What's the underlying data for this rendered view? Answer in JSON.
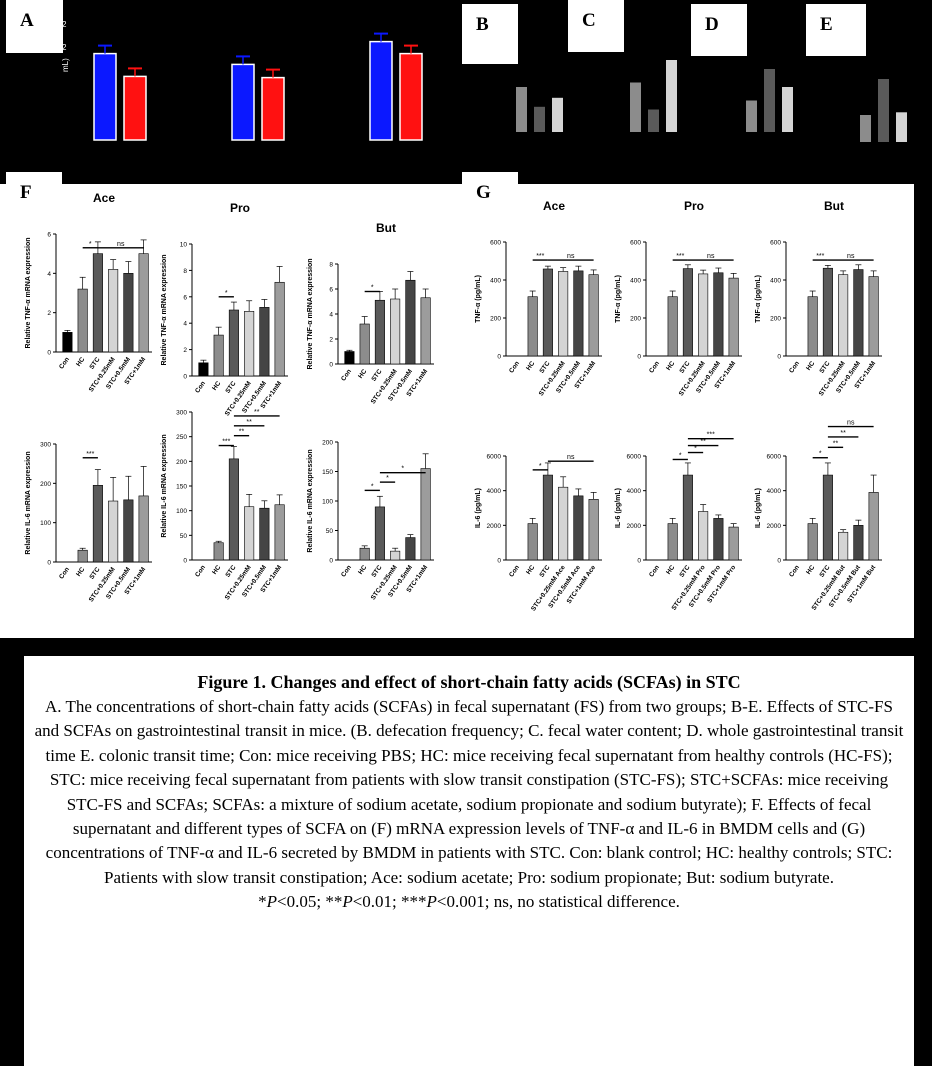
{
  "panels": {
    "A": "A",
    "B": "B",
    "C": "C",
    "D": "D",
    "E": "E",
    "F": "F",
    "G": "G"
  },
  "panelA_fragments": {
    "tick": "2",
    "tick2": "2",
    "unit": "mL)"
  },
  "panelA_bars": [
    {
      "group": 1,
      "values": [
        0.72,
        0.53
      ],
      "colors": [
        "#0b18ff",
        "#ff1111"
      ]
    },
    {
      "group": 2,
      "values": [
        0.63,
        0.52
      ],
      "colors": [
        "#0b18ff",
        "#ff1111"
      ]
    },
    {
      "group": 3,
      "values": [
        0.82,
        0.72
      ],
      "colors": [
        "#0b18ff",
        "#ff1111"
      ]
    }
  ],
  "small_panels": {
    "B": [
      0.5,
      0.28,
      0.38
    ],
    "C": [
      0.55,
      0.25,
      0.8
    ],
    "D": [
      0.35,
      0.7,
      0.5
    ],
    "E": [
      0.3,
      0.7,
      0.33
    ]
  },
  "chart_data": [
    {
      "id": "F-Ace-TNF",
      "type": "bar",
      "title": "Ace",
      "ylabel": "Relative TNF-α mRNA expression",
      "yticks": [
        "0",
        "2",
        "4",
        "6"
      ],
      "ylim": [
        0,
        6
      ],
      "categories": [
        "Con",
        "HC",
        "STC",
        "STC+0.25mM",
        "STC+0.5mM",
        "STC+1mM"
      ],
      "values": [
        1.0,
        3.2,
        5.0,
        4.2,
        4.0,
        5.0
      ],
      "errors": [
        0.1,
        0.6,
        0.6,
        0.5,
        0.6,
        0.7
      ],
      "sig": [
        {
          "label": "*",
          "from": 1,
          "to": 2,
          "y": 5.3
        },
        {
          "label": "ns",
          "from": 2,
          "to": 5,
          "y": 5.3
        }
      ]
    },
    {
      "id": "F-Pro-TNF",
      "type": "bar",
      "title": "Pro",
      "ylabel": "Relative TNF-α mRNA expression",
      "yticks": [
        "0",
        "2",
        "4",
        "6",
        "8",
        "10"
      ],
      "ylim": [
        0,
        10
      ],
      "categories": [
        "Con",
        "HC",
        "STC",
        "STC+0.25mM",
        "STC+0.5mM",
        "STC+1mM"
      ],
      "values": [
        1.0,
        3.1,
        5.0,
        4.9,
        5.2,
        7.1
      ],
      "errors": [
        0.2,
        0.6,
        0.6,
        0.8,
        0.6,
        1.2
      ],
      "sig": [
        {
          "label": "*",
          "from": 1,
          "to": 2,
          "y": 6.0
        }
      ]
    },
    {
      "id": "F-But-TNF",
      "type": "bar",
      "title": "But",
      "ylabel": "Relative TNF-α mRNA expression",
      "yticks": [
        "0",
        "2",
        "4",
        "6",
        "8"
      ],
      "ylim": [
        0,
        8
      ],
      "categories": [
        "Con",
        "HC",
        "STC",
        "STC+0.25mM",
        "STC+0.5mM",
        "STC+1mM"
      ],
      "values": [
        1.0,
        3.2,
        5.1,
        5.2,
        6.7,
        5.3
      ],
      "errors": [
        0.1,
        0.6,
        0.7,
        0.8,
        0.7,
        0.7
      ],
      "sig": [
        {
          "label": "*",
          "from": 1,
          "to": 2,
          "y": 5.8
        }
      ]
    },
    {
      "id": "F-Ace-IL6",
      "type": "bar",
      "title": "",
      "ylabel": "Relative IL-6 mRNA expression",
      "yticks": [
        "0",
        "100",
        "200",
        "300"
      ],
      "ylim": [
        0,
        300
      ],
      "categories": [
        "Con",
        "HC",
        "STC",
        "STC+0.25mM",
        "STC+0.5mM",
        "STC+1mM"
      ],
      "values": [
        0,
        30,
        195,
        155,
        158,
        168
      ],
      "errors": [
        0,
        5,
        40,
        60,
        60,
        75
      ],
      "sig": [
        {
          "label": "***",
          "from": 1,
          "to": 2,
          "y": 265
        }
      ]
    },
    {
      "id": "F-Pro-IL6",
      "type": "bar",
      "title": "",
      "ylabel": "Relative IL-6 mRNA expression",
      "yticks": [
        "0",
        "50",
        "100",
        "150",
        "200",
        "250",
        "300"
      ],
      "ylim": [
        0,
        300
      ],
      "categories": [
        "Con",
        "HC",
        "STC",
        "STC+0.25mM",
        "STC+0.5mM",
        "STC+1mM"
      ],
      "values": [
        0,
        35,
        205,
        108,
        105,
        112
      ],
      "errors": [
        0,
        3,
        25,
        25,
        15,
        20
      ],
      "sig": [
        {
          "label": "***",
          "from": 1,
          "to": 2,
          "y": 232
        },
        {
          "label": "**",
          "from": 2,
          "to": 3,
          "y": 252
        },
        {
          "label": "**",
          "from": 2,
          "to": 4,
          "y": 272
        },
        {
          "label": "**",
          "from": 2,
          "to": 5,
          "y": 292
        }
      ]
    },
    {
      "id": "F-But-IL6",
      "type": "bar",
      "title": "",
      "ylabel": "Relative IL-6 mRNA expression",
      "yticks": [
        "0",
        "50",
        "100",
        "150",
        "200"
      ],
      "ylim": [
        0,
        200
      ],
      "categories": [
        "Con",
        "HC",
        "STC",
        "STC+0.25mM",
        "STC+0.5mM",
        "STC+1mM"
      ],
      "values": [
        0,
        20,
        90,
        15,
        38,
        155
      ],
      "errors": [
        0,
        4,
        18,
        5,
        5,
        25
      ],
      "sig": [
        {
          "label": "*",
          "from": 1,
          "to": 2,
          "y": 118
        },
        {
          "label": "*",
          "from": 2,
          "to": 3,
          "y": 132
        },
        {
          "label": "*",
          "from": 2,
          "to": 5,
          "y": 148
        }
      ]
    },
    {
      "id": "G-Ace-TNF",
      "type": "bar",
      "title": "Ace",
      "ylabel": "TNF-α (pg/mL)",
      "yticks": [
        "0",
        "200",
        "400",
        "600"
      ],
      "ylim": [
        0,
        600
      ],
      "categories": [
        "Con",
        "HC",
        "STC",
        "STC+0.25mM",
        "STC+0.5mM",
        "STC+1mM"
      ],
      "values": [
        0,
        312,
        458,
        445,
        448,
        428
      ],
      "errors": [
        0,
        30,
        15,
        20,
        25,
        25
      ],
      "sig": [
        {
          "label": "***",
          "from": 1,
          "to": 2,
          "y": 505
        },
        {
          "label": "ns",
          "from": 2,
          "to": 5,
          "y": 505
        }
      ]
    },
    {
      "id": "G-Pro-TNF",
      "type": "bar",
      "title": "Pro",
      "ylabel": "TNF-α (pg/mL)",
      "yticks": [
        "0",
        "200",
        "400",
        "600"
      ],
      "ylim": [
        0,
        600
      ],
      "categories": [
        "Con",
        "HC",
        "STC",
        "STC+0.25mM",
        "STC+0.5mM",
        "STC+1mM"
      ],
      "values": [
        0,
        312,
        460,
        432,
        438,
        410
      ],
      "errors": [
        0,
        30,
        20,
        20,
        25,
        25
      ],
      "sig": [
        {
          "label": "***",
          "from": 1,
          "to": 2,
          "y": 505
        },
        {
          "label": "ns",
          "from": 2,
          "to": 5,
          "y": 505
        }
      ]
    },
    {
      "id": "G-But-TNF",
      "type": "bar",
      "title": "But",
      "ylabel": "TNF-α (pg/mL)",
      "yticks": [
        "0",
        "200",
        "400",
        "600"
      ],
      "ylim": [
        0,
        600
      ],
      "categories": [
        "Con",
        "HC",
        "STC",
        "STC+0.25mM",
        "STC+0.5mM",
        "STC+1mM"
      ],
      "values": [
        0,
        312,
        462,
        428,
        455,
        418
      ],
      "errors": [
        0,
        30,
        15,
        20,
        25,
        30
      ],
      "sig": [
        {
          "label": "***",
          "from": 1,
          "to": 2,
          "y": 505
        },
        {
          "label": "ns",
          "from": 2,
          "to": 5,
          "y": 505
        }
      ]
    },
    {
      "id": "G-Ace-IL6",
      "type": "bar",
      "title": "",
      "ylabel": "IL-6 (pg/mL)",
      "yticks": [
        "0",
        "2000",
        "4000",
        "6000"
      ],
      "ylim": [
        0,
        6000
      ],
      "categories": [
        "Con",
        "HC",
        "STC",
        "STC+0.25mM Ace",
        "STC+0.5mM Ace",
        "STC+1mM Ace"
      ],
      "values": [
        0,
        2100,
        4900,
        4200,
        3700,
        3500
      ],
      "errors": [
        0,
        300,
        700,
        600,
        400,
        400
      ],
      "sig": [
        {
          "label": "*",
          "from": 1,
          "to": 2,
          "y": 5200
        },
        {
          "label": "ns",
          "from": 2,
          "to": 5,
          "y": 5700
        }
      ]
    },
    {
      "id": "G-Pro-IL6",
      "type": "bar",
      "title": "",
      "ylabel": "IL-6 (pg/mL)",
      "yticks": [
        "0",
        "2000",
        "4000",
        "6000"
      ],
      "ylim": [
        0,
        6000
      ],
      "categories": [
        "Con",
        "HC",
        "STC",
        "STC+0.25mM Pro",
        "STC+0.5mM Pro",
        "STC+1mM Pro"
      ],
      "values": [
        0,
        2100,
        4900,
        2800,
        2400,
        1900
      ],
      "errors": [
        0,
        300,
        700,
        400,
        200,
        200
      ],
      "sig": [
        {
          "label": "*",
          "from": 1,
          "to": 2,
          "y": 5800
        },
        {
          "label": "*",
          "from": 2,
          "to": 3,
          "y": 6200
        },
        {
          "label": "**",
          "from": 2,
          "to": 4,
          "y": 6600
        },
        {
          "label": "***",
          "from": 2,
          "to": 5,
          "y": 7000
        }
      ]
    },
    {
      "id": "G-But-IL6",
      "type": "bar",
      "title": "",
      "ylabel": "IL-6 (pg/mL)",
      "yticks": [
        "0",
        "2000",
        "4000",
        "6000"
      ],
      "ylim": [
        0,
        6000
      ],
      "categories": [
        "Con",
        "HC",
        "STC",
        "STC+0.25mM But",
        "STC+0.5mM But",
        "STC+1mM But"
      ],
      "values": [
        0,
        2100,
        4900,
        1600,
        2000,
        3900
      ],
      "errors": [
        0,
        300,
        700,
        150,
        300,
        1000
      ],
      "sig": [
        {
          "label": "*",
          "from": 1,
          "to": 2,
          "y": 5900
        },
        {
          "label": "**",
          "from": 2,
          "to": 3,
          "y": 6500
        },
        {
          "label": "**",
          "from": 2,
          "to": 4,
          "y": 7100
        },
        {
          "label": "ns",
          "from": 2,
          "to": 5,
          "y": 7700
        }
      ]
    }
  ],
  "bar_colors": [
    "#000000",
    "#8c8c8c",
    "#5a5a5a",
    "#d4d4d4",
    "#454545",
    "#9c9c9c"
  ],
  "caption": {
    "title": "Figure 1. Changes and effect of short-chain fatty acids (SCFAs) in STC",
    "body": "A. The concentrations of short-chain fatty acids (SCFAs) in fecal supernatant (FS) from two groups; B-E. Effects of STC-FS and SCFAs on gastrointestinal transit in mice. (B. defecation frequency; C. fecal water content; D. whole gastrointestinal transit time E. colonic transit time; Con: mice receiving PBS; HC: mice receiving fecal supernatant from healthy controls (HC-FS); STC: mice receiving fecal supernatant from patients with slow transit constipation (STC-FS); STC+SCFAs: mice receiving STC-FS and SCFAs; SCFAs: a mixture of sodium acetate, sodium propionate and sodium butyrate); F. Effects of fecal supernatant and different types of SCFA on (F) mRNA expression levels of TNF-α and IL-6 in BMDM cells and (G) concentrations of TNF-α and IL-6 secreted by BMDM in patients with STC. Con: blank control; HC: healthy controls; STC: Patients with slow transit constipation; Ace: sodium acetate; Pro: sodium propionate; But: sodium butyrate.",
    "stats": [
      {
        "star": "*",
        "p": "P",
        "rest": "<0.05; "
      },
      {
        "star": "**",
        "p": "P",
        "rest": "<0.01; "
      },
      {
        "star": "***",
        "p": "P",
        "rest": "<0.001; ns, no statistical difference."
      }
    ]
  }
}
